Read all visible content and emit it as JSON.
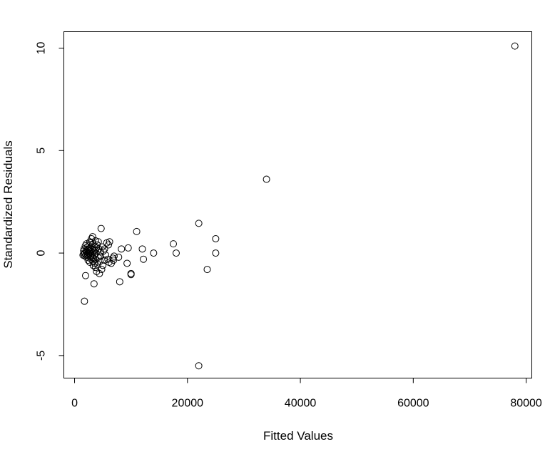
{
  "chart_data": {
    "type": "scatter",
    "title": "",
    "xlabel": "Fitted Values",
    "ylabel": "Standardized Residuals",
    "xlim": [
      -1900,
      81000
    ],
    "ylim": [
      -6.1,
      10.8
    ],
    "x_ticks": [
      0,
      20000,
      40000,
      60000,
      80000
    ],
    "x_tick_labels": [
      "0",
      "20000",
      "40000",
      "60000",
      "80000"
    ],
    "y_ticks": [
      -5,
      0,
      5,
      10
    ],
    "y_tick_labels": [
      "-5",
      "0",
      "5",
      "10"
    ],
    "grid": false,
    "points": [
      {
        "x": 78000,
        "y": 10.1
      },
      {
        "x": 34000,
        "y": 3.6
      },
      {
        "x": 22000,
        "y": 1.45
      },
      {
        "x": 22000,
        "y": -5.5
      },
      {
        "x": 25000,
        "y": 0.7
      },
      {
        "x": 25000,
        "y": 0.0
      },
      {
        "x": 23500,
        "y": -0.8
      },
      {
        "x": 17500,
        "y": 0.45
      },
      {
        "x": 18000,
        "y": 0.0
      },
      {
        "x": 14000,
        "y": 0.0
      },
      {
        "x": 12000,
        "y": 0.2
      },
      {
        "x": 12200,
        "y": -0.3
      },
      {
        "x": 11000,
        "y": 1.05
      },
      {
        "x": 10000,
        "y": -1.0
      },
      {
        "x": 10000,
        "y": -1.05
      },
      {
        "x": 9500,
        "y": 0.25
      },
      {
        "x": 9300,
        "y": -0.5
      },
      {
        "x": 8300,
        "y": 0.2
      },
      {
        "x": 8000,
        "y": -1.4
      },
      {
        "x": 7800,
        "y": -0.2
      },
      {
        "x": 7000,
        "y": -0.15
      },
      {
        "x": 6800,
        "y": -0.25
      },
      {
        "x": 6500,
        "y": -0.5
      },
      {
        "x": 6200,
        "y": 0.55
      },
      {
        "x": 6000,
        "y": 0.4
      },
      {
        "x": 5900,
        "y": -0.3
      },
      {
        "x": 5700,
        "y": 0.5
      },
      {
        "x": 5500,
        "y": -0.1
      },
      {
        "x": 5300,
        "y": -0.35
      },
      {
        "x": 5100,
        "y": 0.1
      },
      {
        "x": 5000,
        "y": -0.6
      },
      {
        "x": 4900,
        "y": 0.3
      },
      {
        "x": 4800,
        "y": -0.8
      },
      {
        "x": 4700,
        "y": 1.2
      },
      {
        "x": 4600,
        "y": 0.05
      },
      {
        "x": 4500,
        "y": -0.4
      },
      {
        "x": 4400,
        "y": -1.0
      },
      {
        "x": 4300,
        "y": 0.2
      },
      {
        "x": 4200,
        "y": -0.2
      },
      {
        "x": 4100,
        "y": -0.55
      },
      {
        "x": 4000,
        "y": 0.4
      },
      {
        "x": 3900,
        "y": -0.9
      },
      {
        "x": 3800,
        "y": 0.0
      },
      {
        "x": 3750,
        "y": -0.3
      },
      {
        "x": 3700,
        "y": 0.6
      },
      {
        "x": 3650,
        "y": 0.15
      },
      {
        "x": 3600,
        "y": -0.5
      },
      {
        "x": 3550,
        "y": 0.3
      },
      {
        "x": 3500,
        "y": -0.1
      },
      {
        "x": 3450,
        "y": -1.5
      },
      {
        "x": 3400,
        "y": 0.1
      },
      {
        "x": 3350,
        "y": -0.25
      },
      {
        "x": 3300,
        "y": 0.45
      },
      {
        "x": 3250,
        "y": -0.4
      },
      {
        "x": 3200,
        "y": 0.8
      },
      {
        "x": 3150,
        "y": 0.0
      },
      {
        "x": 3100,
        "y": -0.15
      },
      {
        "x": 3050,
        "y": 0.2
      },
      {
        "x": 3000,
        "y": 0.7
      },
      {
        "x": 2950,
        "y": -0.3
      },
      {
        "x": 2900,
        "y": 0.05
      },
      {
        "x": 2850,
        "y": 0.5
      },
      {
        "x": 2800,
        "y": -0.2
      },
      {
        "x": 2750,
        "y": 0.25
      },
      {
        "x": 2700,
        "y": -0.45
      },
      {
        "x": 2650,
        "y": 0.1
      },
      {
        "x": 2600,
        "y": 0.35
      },
      {
        "x": 2550,
        "y": -0.1
      },
      {
        "x": 2500,
        "y": 0.0
      },
      {
        "x": 2450,
        "y": 0.2
      },
      {
        "x": 2400,
        "y": -0.35
      },
      {
        "x": 2350,
        "y": 0.15
      },
      {
        "x": 2300,
        "y": -0.05
      },
      {
        "x": 2250,
        "y": 0.3
      },
      {
        "x": 2200,
        "y": -0.2
      },
      {
        "x": 2150,
        "y": 0.05
      },
      {
        "x": 2100,
        "y": 0.45
      },
      {
        "x": 2050,
        "y": -0.1
      },
      {
        "x": 2000,
        "y": 0.1
      },
      {
        "x": 1950,
        "y": -1.1
      },
      {
        "x": 1900,
        "y": 0.35
      },
      {
        "x": 1850,
        "y": -0.15
      },
      {
        "x": 1800,
        "y": 0.0
      },
      {
        "x": 1750,
        "y": -2.35
      },
      {
        "x": 1700,
        "y": 0.2
      },
      {
        "x": 1650,
        "y": -0.05
      },
      {
        "x": 1600,
        "y": 0.1
      },
      {
        "x": 1500,
        "y": -0.1
      },
      {
        "x": 3300,
        "y": -0.6
      },
      {
        "x": 3700,
        "y": -0.7
      },
      {
        "x": 4200,
        "y": 0.55
      },
      {
        "x": 5300,
        "y": 0.2
      },
      {
        "x": 2700,
        "y": 0.55
      },
      {
        "x": 3900,
        "y": 0.25
      },
      {
        "x": 4600,
        "y": -0.15
      },
      {
        "x": 6900,
        "y": -0.35
      },
      {
        "x": 6100,
        "y": -0.45
      }
    ]
  }
}
